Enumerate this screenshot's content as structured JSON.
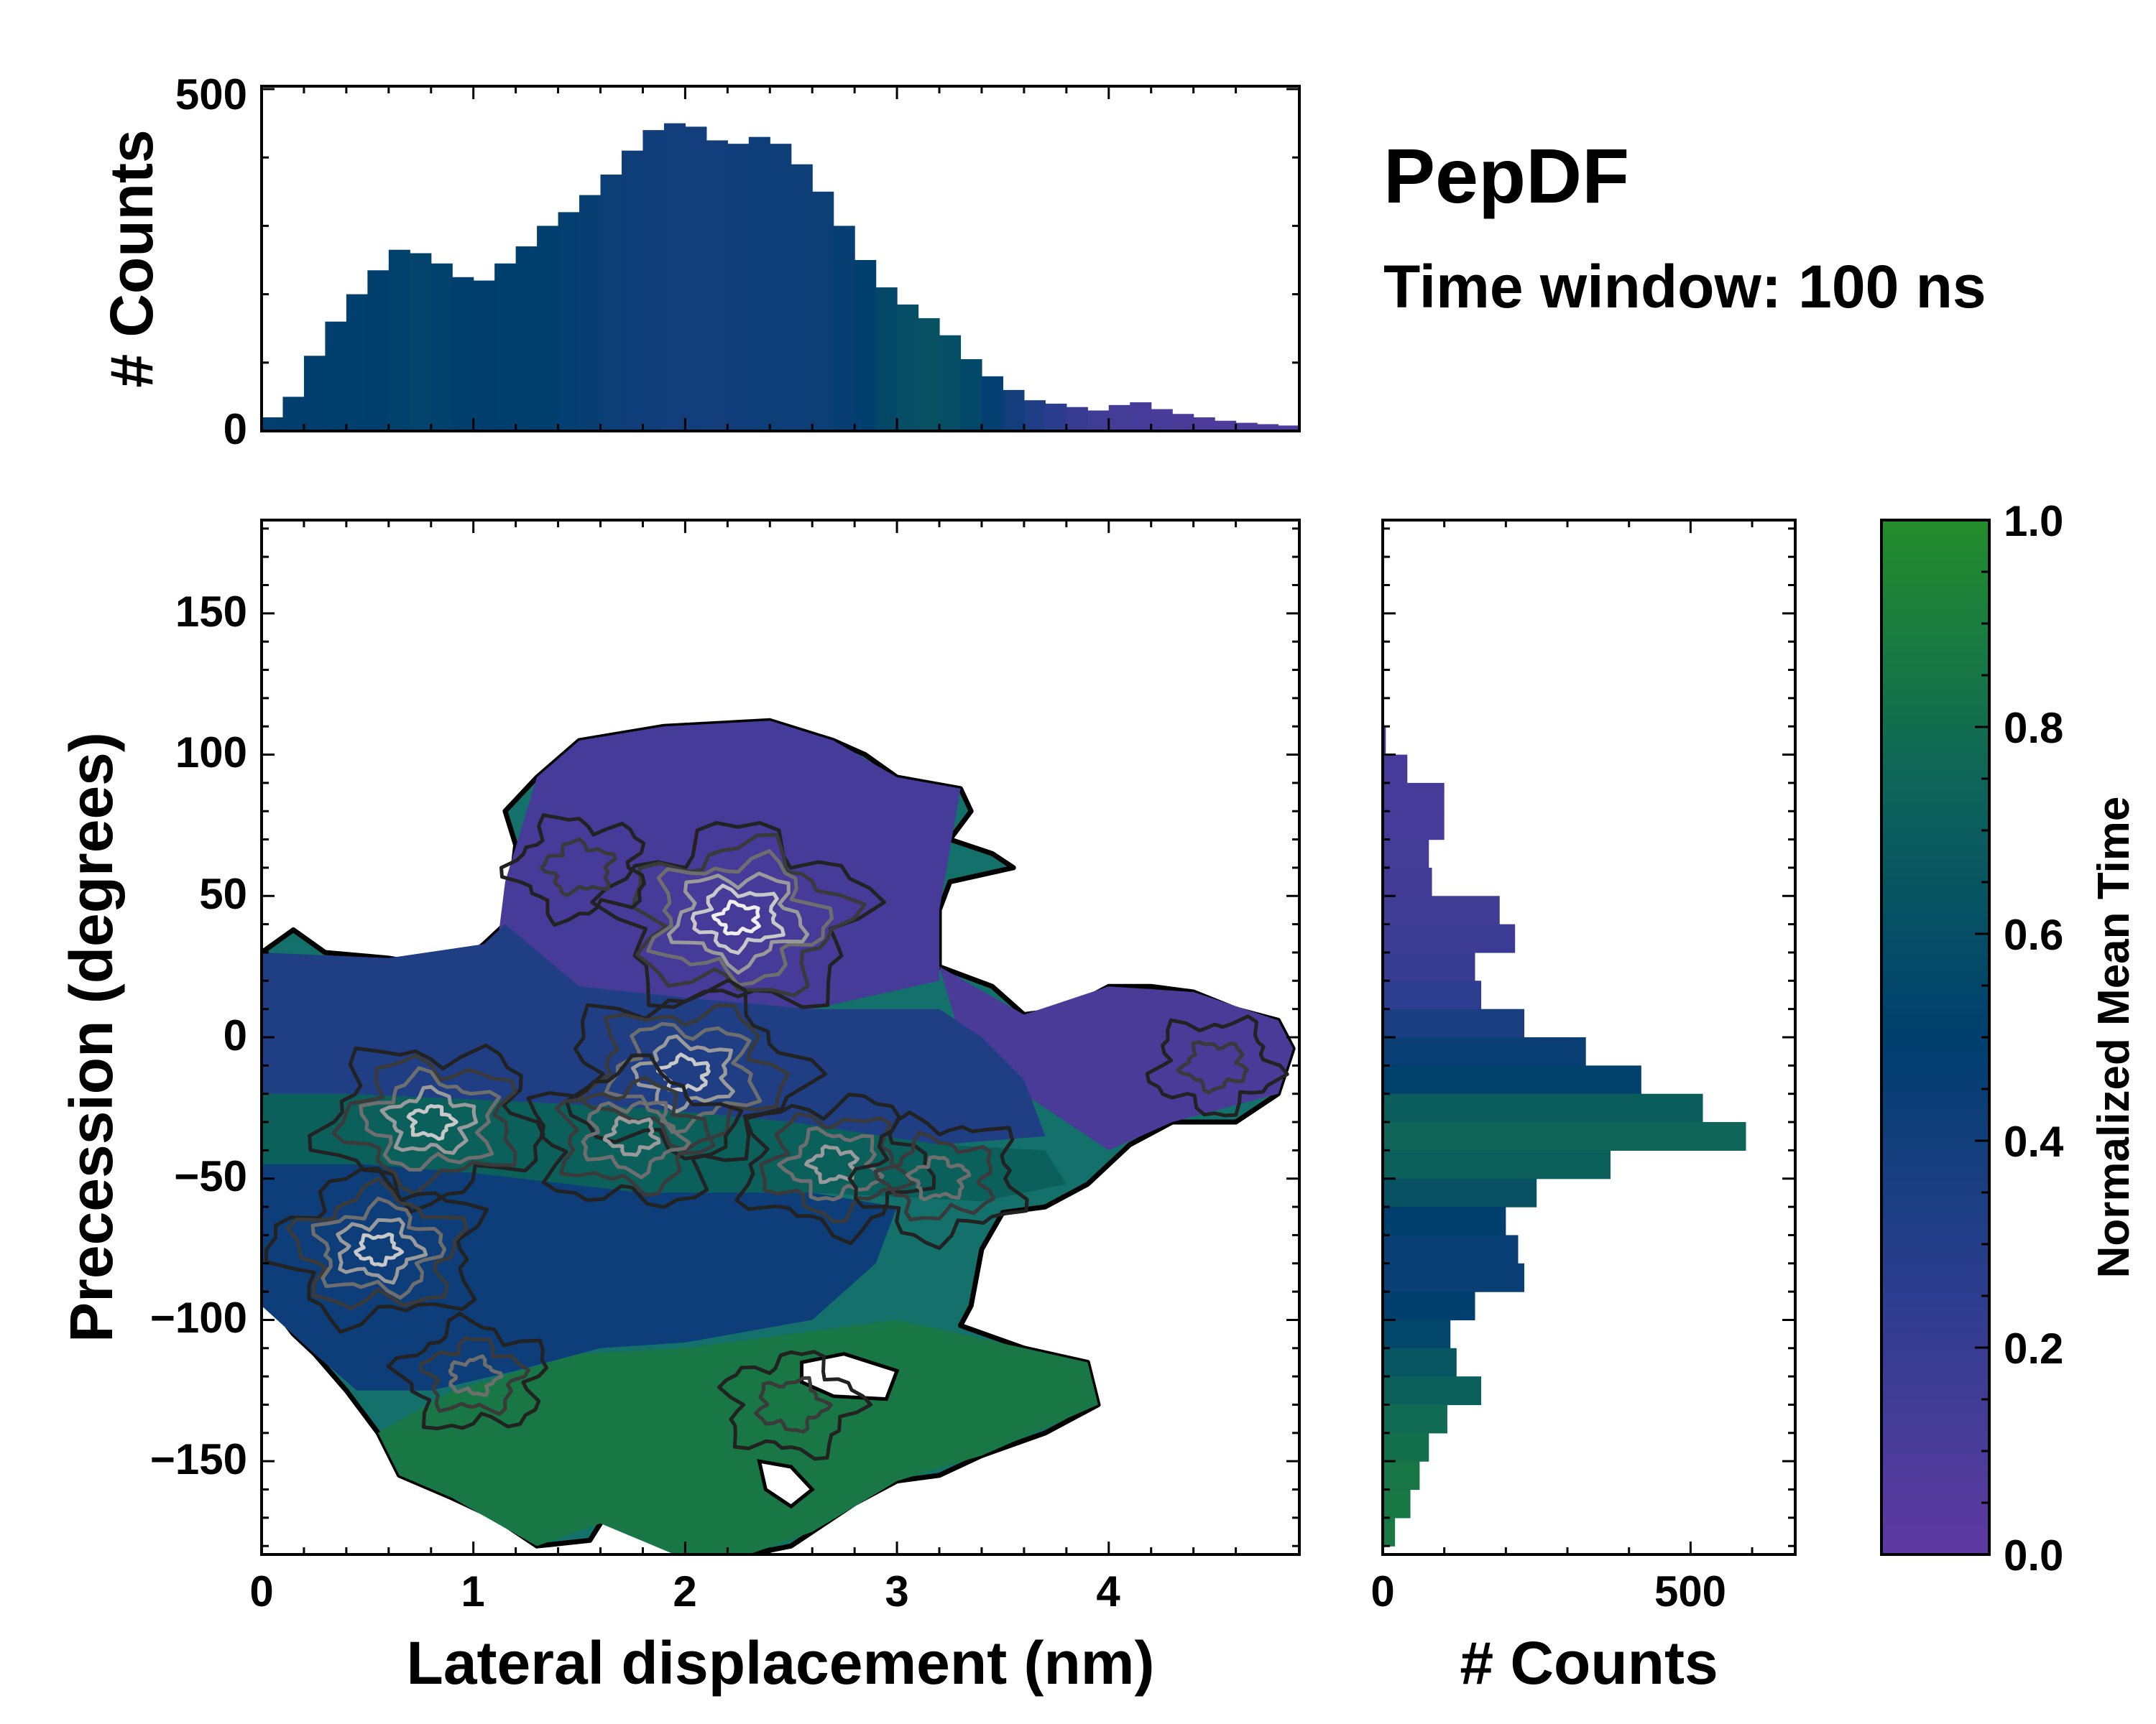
{
  "chart_data": {
    "type": "heatmap",
    "title": "PepDF",
    "subtitle": "Time window: 100 ns",
    "main": {
      "xlabel": "Lateral displacement (nm)",
      "ylabel": "Precession (degrees)",
      "xlim": [
        0,
        4.9
      ],
      "ylim": [
        -183,
        183
      ],
      "xticks": [
        0,
        1,
        2,
        3,
        4
      ],
      "xtick_labels": [
        "0",
        "1",
        "2",
        "3",
        "4"
      ],
      "yticks": [
        -150,
        -100,
        -50,
        0,
        50,
        100,
        150
      ],
      "ytick_labels": [
        "−150",
        "−100",
        "−50",
        "0",
        "50",
        "100",
        "150"
      ],
      "density_peaks": [
        {
          "x": 2.25,
          "y": 42,
          "strength": 1.0
        },
        {
          "x": 2.0,
          "y": -13,
          "strength": 0.9
        },
        {
          "x": 0.8,
          "y": -30,
          "strength": 0.8
        },
        {
          "x": 0.55,
          "y": -75,
          "strength": 0.75
        },
        {
          "x": 1.75,
          "y": -35,
          "strength": 0.7
        },
        {
          "x": 2.7,
          "y": -45,
          "strength": 0.65
        },
        {
          "x": 3.2,
          "y": -50,
          "strength": 0.55
        },
        {
          "x": 1.0,
          "y": -120,
          "strength": 0.45
        },
        {
          "x": 2.5,
          "y": -130,
          "strength": 0.4
        },
        {
          "x": 4.5,
          "y": -10,
          "strength": 0.35
        },
        {
          "x": 1.5,
          "y": 60,
          "strength": 0.4
        }
      ]
    },
    "top_histogram": {
      "ylabel": "# Counts",
      "ylim": [
        0,
        500
      ],
      "yticks": [
        0,
        500
      ],
      "ytick_labels": [
        "0",
        "500"
      ],
      "bin_centers_nm": [
        0.05,
        0.15,
        0.25,
        0.35,
        0.45,
        0.55,
        0.65,
        0.75,
        0.85,
        0.95,
        1.05,
        1.15,
        1.25,
        1.35,
        1.45,
        1.55,
        1.65,
        1.75,
        1.85,
        1.95,
        2.05,
        2.15,
        2.25,
        2.35,
        2.45,
        2.55,
        2.65,
        2.75,
        2.85,
        2.95,
        3.05,
        3.15,
        3.25,
        3.35,
        3.45,
        3.55,
        3.65,
        3.75,
        3.85,
        3.95,
        4.05,
        4.15,
        4.25,
        4.35,
        4.45,
        4.55,
        4.65,
        4.75,
        4.85
      ],
      "counts": [
        20,
        50,
        110,
        160,
        200,
        235,
        265,
        260,
        245,
        225,
        220,
        245,
        270,
        300,
        320,
        345,
        375,
        410,
        440,
        450,
        445,
        425,
        420,
        430,
        420,
        390,
        350,
        300,
        250,
        210,
        185,
        165,
        140,
        105,
        80,
        60,
        45,
        40,
        35,
        30,
        38,
        42,
        32,
        25,
        20,
        15,
        12,
        10,
        8
      ],
      "mean_time": [
        0.5,
        0.49,
        0.49,
        0.5,
        0.5,
        0.5,
        0.52,
        0.53,
        0.52,
        0.5,
        0.49,
        0.5,
        0.5,
        0.5,
        0.48,
        0.46,
        0.44,
        0.42,
        0.41,
        0.4,
        0.4,
        0.4,
        0.41,
        0.42,
        0.43,
        0.43,
        0.44,
        0.46,
        0.5,
        0.56,
        0.6,
        0.62,
        0.6,
        0.56,
        0.48,
        0.4,
        0.32,
        0.26,
        0.2,
        0.16,
        0.13,
        0.12,
        0.11,
        0.1,
        0.09,
        0.08,
        0.08,
        0.08,
        0.08
      ]
    },
    "right_histogram": {
      "xlabel": "# Counts",
      "xlim": [
        0,
        670
      ],
      "xticks": [
        0,
        500
      ],
      "xtick_labels": [
        "0",
        "500"
      ],
      "bin_centers_deg": [
        105,
        95,
        85,
        75,
        65,
        55,
        45,
        35,
        25,
        15,
        5,
        -5,
        -15,
        -25,
        -35,
        -45,
        -55,
        -65,
        -75,
        -85,
        -95,
        -105,
        -115,
        -125,
        -135,
        -145,
        -155,
        -165,
        -175
      ],
      "counts": [
        5,
        40,
        100,
        100,
        75,
        80,
        190,
        215,
        150,
        160,
        230,
        330,
        420,
        520,
        590,
        370,
        250,
        200,
        220,
        230,
        150,
        110,
        120,
        160,
        105,
        75,
        60,
        45,
        20
      ],
      "mean_time": [
        0.12,
        0.12,
        0.12,
        0.12,
        0.13,
        0.14,
        0.15,
        0.17,
        0.2,
        0.25,
        0.35,
        0.45,
        0.52,
        0.7,
        0.75,
        0.72,
        0.62,
        0.5,
        0.45,
        0.45,
        0.5,
        0.55,
        0.65,
        0.72,
        0.78,
        0.82,
        0.85,
        0.86,
        0.87
      ]
    },
    "colorbar": {
      "label": "Normalized Mean Time",
      "range": [
        0.0,
        1.0
      ],
      "ticks": [
        0.0,
        0.2,
        0.4,
        0.6,
        0.8,
        1.0
      ],
      "tick_labels": [
        "0.0",
        "0.2",
        "0.4",
        "0.6",
        "0.8",
        "1.0"
      ],
      "colors": [
        "#5e3aa0",
        "#2d3d8f",
        "#003f6e",
        "#0e6558",
        "#248d2c"
      ]
    }
  }
}
